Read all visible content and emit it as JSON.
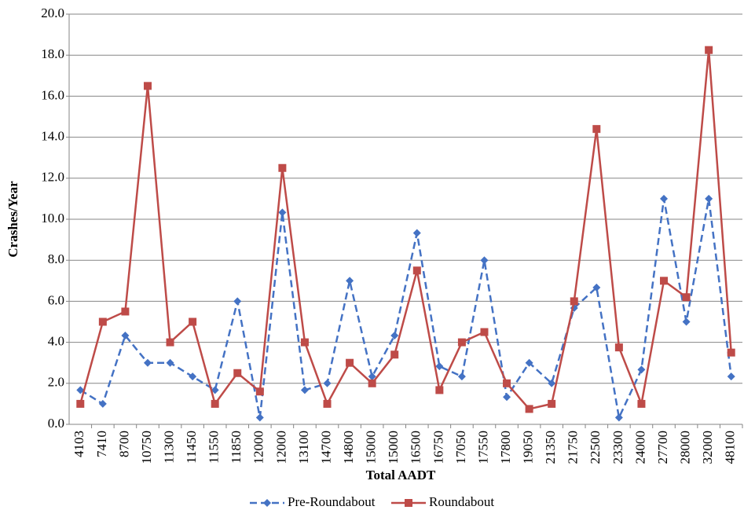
{
  "chart_data": {
    "type": "line",
    "x_label": "Total AADT",
    "y_label": "Crashes/Year",
    "categories": [
      "4103",
      "7410",
      "8700",
      "10750",
      "11300",
      "11450",
      "11550",
      "11850",
      "12000",
      "12000",
      "13100",
      "14700",
      "14800",
      "15000",
      "15000",
      "16500",
      "16750",
      "17050",
      "17550",
      "17800",
      "19050",
      "21350",
      "21750",
      "22500",
      "23300",
      "24000",
      "27700",
      "28000",
      "32000",
      "48100"
    ],
    "series": [
      {
        "name": "Pre-Roundabout",
        "color": "#4472c4",
        "dash": true,
        "marker": "diamond",
        "values": [
          1.67,
          1.0,
          4.33,
          3.0,
          3.0,
          2.33,
          1.67,
          6.0,
          0.33,
          10.33,
          1.67,
          2.0,
          7.0,
          2.33,
          4.33,
          9.33,
          2.83,
          2.33,
          8.0,
          1.33,
          3.0,
          2.0,
          5.67,
          6.67,
          0.33,
          2.67,
          11.0,
          5.0,
          11.0,
          2.33
        ]
      },
      {
        "name": "Roundabout",
        "color": "#be4b48",
        "dash": false,
        "marker": "square",
        "values": [
          1.0,
          5.0,
          5.5,
          16.5,
          4.0,
          5.0,
          1.0,
          2.5,
          1.6,
          12.5,
          4.0,
          1.0,
          3.0,
          2.0,
          3.4,
          7.5,
          1.67,
          4.0,
          4.5,
          2.0,
          0.75,
          1.0,
          6.0,
          14.4,
          3.75,
          1.0,
          7.0,
          6.2,
          18.25,
          3.5
        ]
      }
    ],
    "ylim": [
      0,
      20
    ],
    "yticks": [
      {
        "value": 0,
        "label": "0.0"
      },
      {
        "value": 2,
        "label": "2.0"
      },
      {
        "value": 4,
        "label": "4.0"
      },
      {
        "value": 6,
        "label": "6.0"
      },
      {
        "value": 8,
        "label": "8.0"
      },
      {
        "value": 10,
        "label": "10.0"
      },
      {
        "value": 12,
        "label": "12.0"
      },
      {
        "value": 14,
        "label": "14.0"
      },
      {
        "value": 16,
        "label": "16.0"
      },
      {
        "value": 18,
        "label": "18.0"
      },
      {
        "value": 20,
        "label": "20.0"
      }
    ],
    "grid": true,
    "legend": "bottom"
  }
}
